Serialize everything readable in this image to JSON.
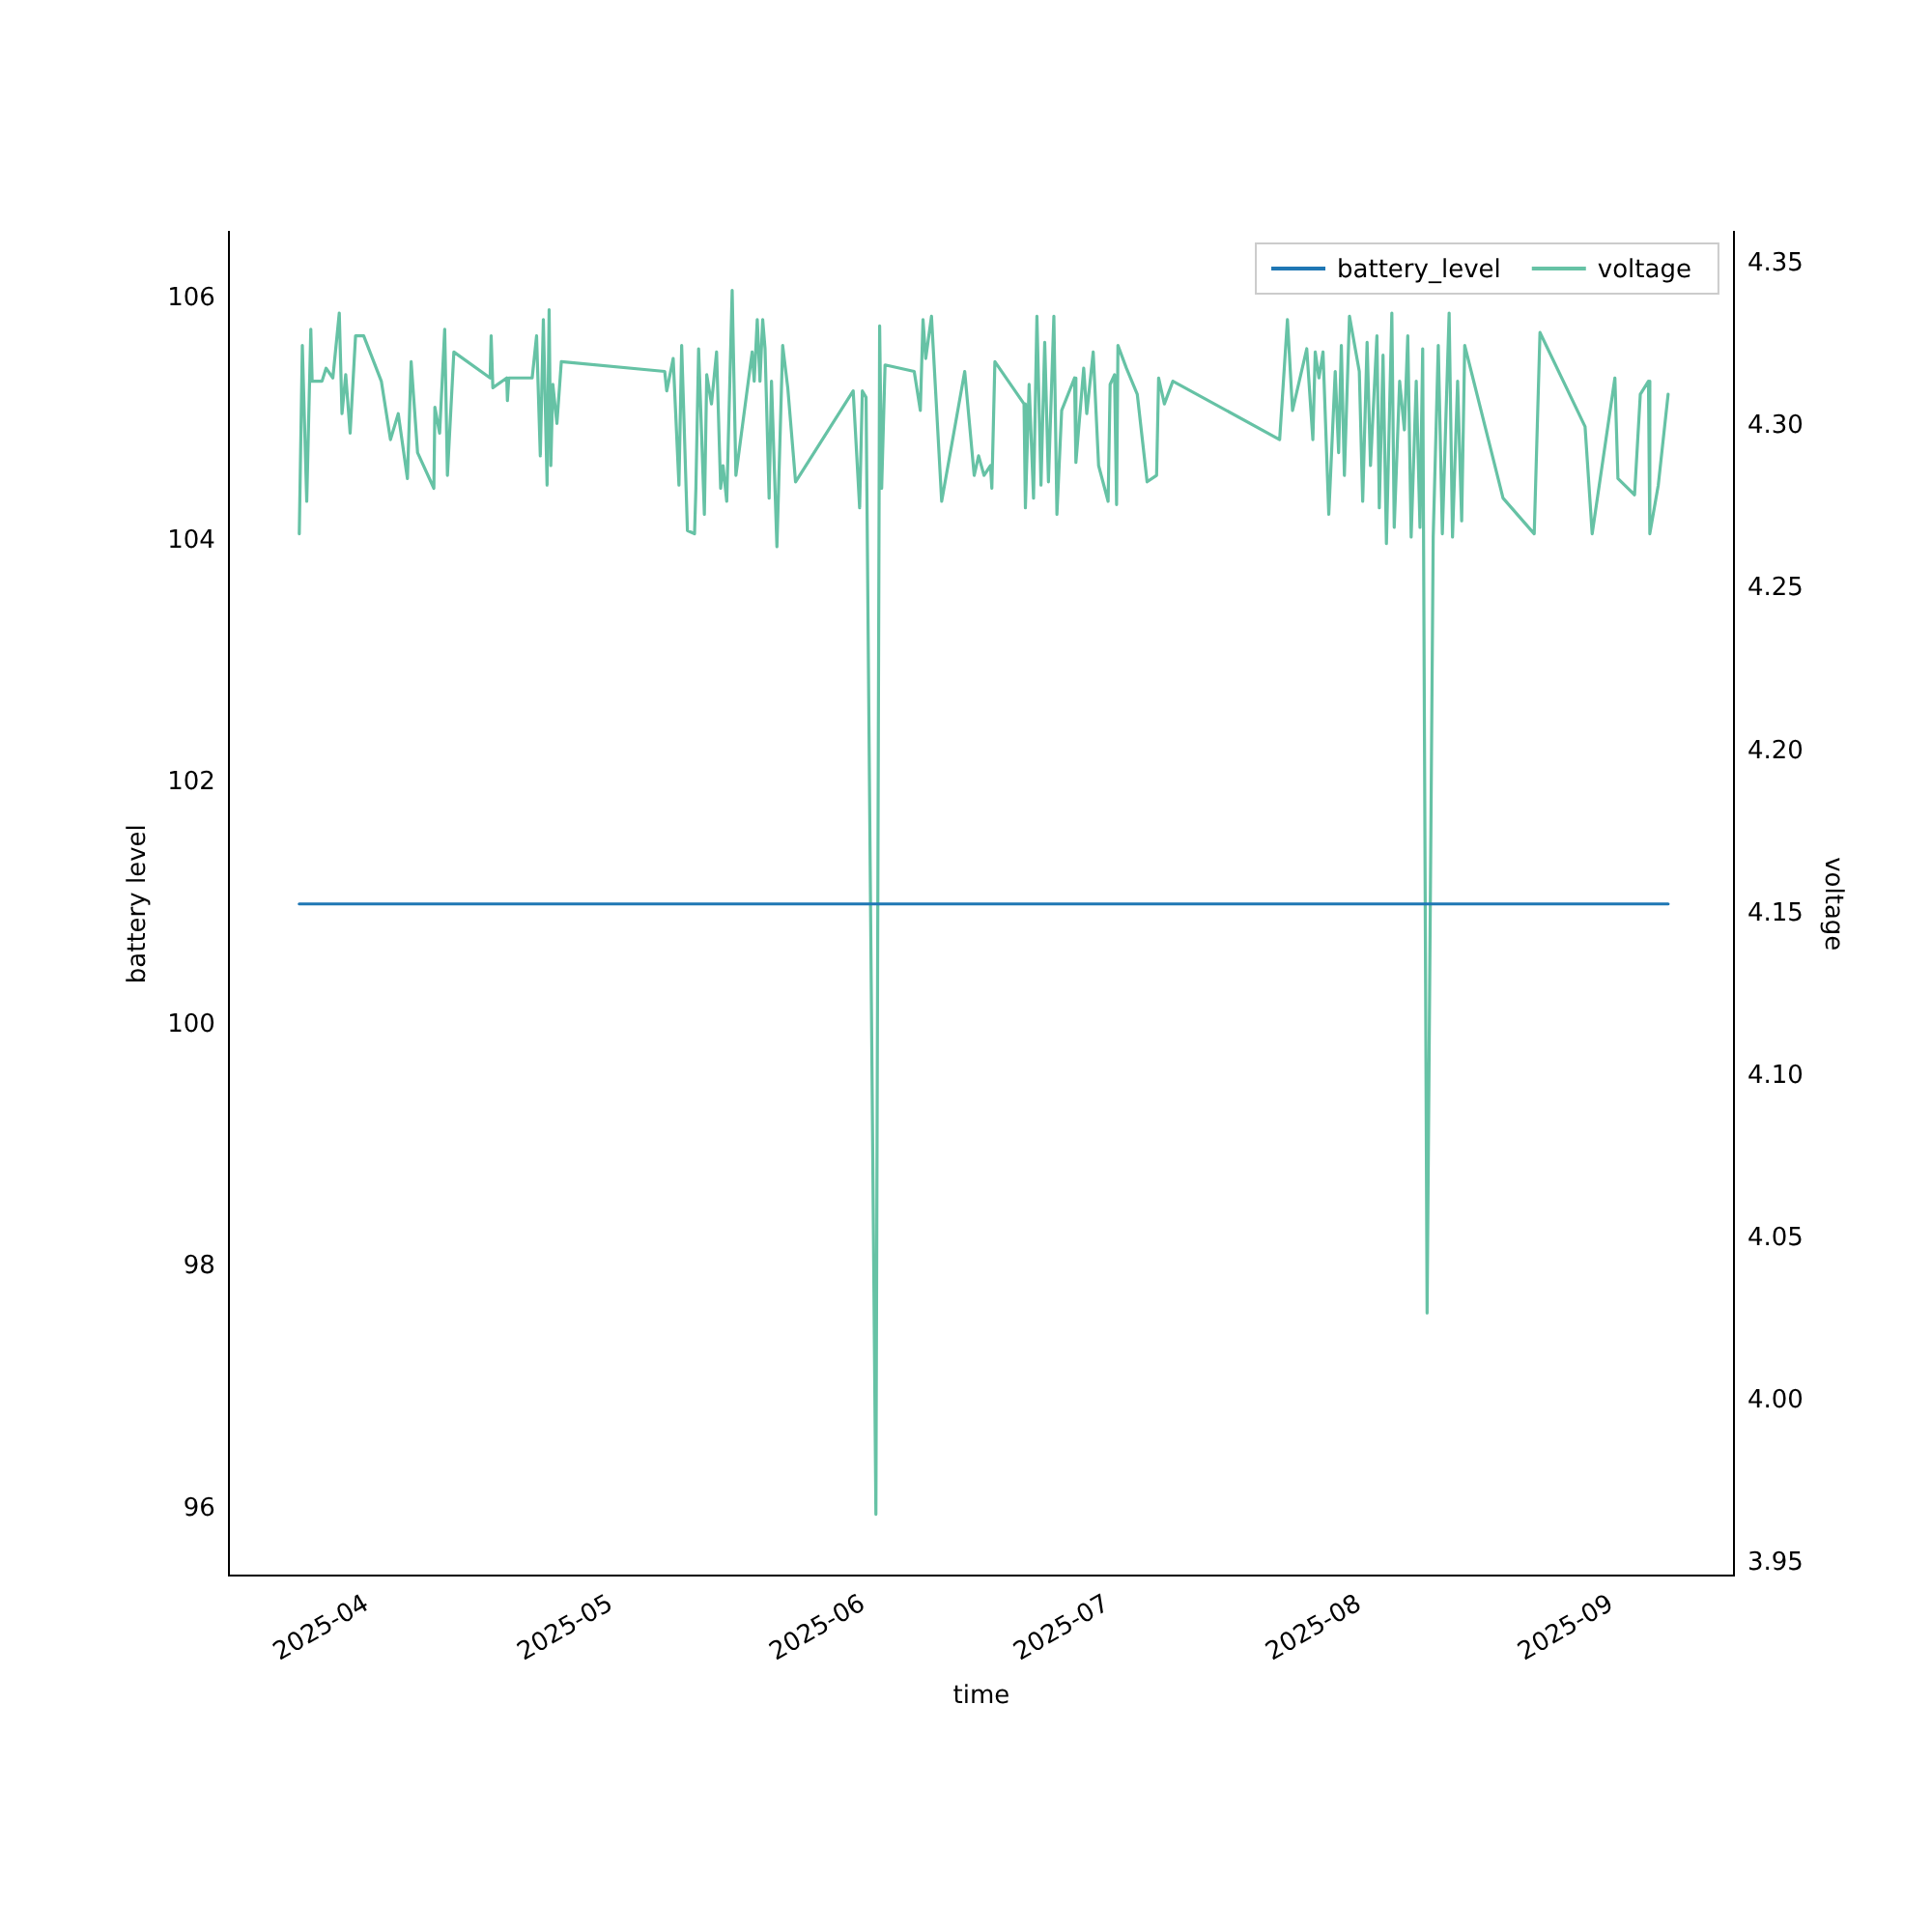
{
  "chart_data": {
    "type": "line",
    "xlabel": "time",
    "ylabel": "battery level",
    "y2label": "voltage",
    "xlim": [
      "2025-03-15",
      "2025-09-16"
    ],
    "xticks": [
      {
        "value": "2025-04-01",
        "label": "2025-04"
      },
      {
        "value": "2025-05-01",
        "label": "2025-05"
      },
      {
        "value": "2025-06-01",
        "label": "2025-06"
      },
      {
        "value": "2025-07-01",
        "label": "2025-07"
      },
      {
        "value": "2025-08-01",
        "label": "2025-08"
      },
      {
        "value": "2025-09-01",
        "label": "2025-09"
      }
    ],
    "ylim": [
      95.445,
      106.555
    ],
    "yticks": [
      96,
      98,
      100,
      102,
      104,
      106
    ],
    "y2lim": [
      3.946,
      4.36
    ],
    "y2ticks": [
      {
        "value": 3.95,
        "label": "3.95"
      },
      {
        "value": 4,
        "label": "4.00"
      },
      {
        "value": 4.05,
        "label": "4.05"
      },
      {
        "value": 4.1,
        "label": "4.10"
      },
      {
        "value": 4.15,
        "label": "4.15"
      },
      {
        "value": 4.2,
        "label": "4.20"
      },
      {
        "value": 4.25,
        "label": "4.25"
      },
      {
        "value": 4.3,
        "label": "4.30"
      },
      {
        "value": 4.35,
        "label": "4.35"
      }
    ],
    "legend": "top right",
    "grid": false,
    "marker": "none",
    "line_style": "solid",
    "series": [
      {
        "name": "battery_level",
        "color": "#1f77b4",
        "x": [
          "2025-03-23T16:00",
          "2025-09-07T22:00"
        ],
        "values": [
          101,
          101
        ]
      },
      {
        "name": "voltage",
        "color": "#66c2a5",
        "axis": "y2",
        "x": [
          "2025-03-23T16:00",
          "2025-03-24T01:00",
          "2025-03-24T14:00",
          "2025-03-25T02:00",
          "2025-03-25T06:00",
          "2025-03-26T11:00",
          "2025-03-26T23:00",
          "2025-03-27T19:00",
          "2025-03-28T14:00",
          "2025-03-28T22:00",
          "2025-03-29T09:00",
          "2025-03-29T22:00",
          "2025-03-30T14:00",
          "2025-03-31T14:00",
          "2025-04-02T18:00",
          "2025-04-03T21:00",
          "2025-04-04T20:00",
          "2025-04-05T23:00",
          "2025-04-06T10:00",
          "2025-04-07T05:00",
          "2025-04-09T05:00",
          "2025-04-09T08:00",
          "2025-04-09T22:00",
          "2025-04-10T13:00",
          "2025-04-10T21:00",
          "2025-04-11T16:00",
          "2025-04-16T03:00",
          "2025-04-16T06:00",
          "2025-04-16T11:00",
          "2025-04-18T04:00",
          "2025-04-18T06:00",
          "2025-04-18T10:00",
          "2025-04-21T07:00",
          "2025-04-21T20:00",
          "2025-04-22T07:00",
          "2025-04-22T16:00",
          "2025-04-23T03:00",
          "2025-04-23T09:00",
          "2025-04-23T14:00",
          "2025-04-23T20:00",
          "2025-04-24T08:00",
          "2025-04-24T21:00",
          "2025-05-07T14:00",
          "2025-05-07T20:00",
          "2025-05-08T15:00",
          "2025-05-09T08:00",
          "2025-05-09T16:00",
          "2025-05-10T09:00",
          "2025-05-11T06:00",
          "2025-05-11T10:00",
          "2025-05-11T18:00",
          "2025-05-12T11:00",
          "2025-05-12T18:00",
          "2025-05-13T08:00",
          "2025-05-13T23:00",
          "2025-05-14T11:00",
          "2025-05-14T18:00",
          "2025-05-15T05:00",
          "2025-05-15T21:00",
          "2025-05-16T08:00",
          "2025-05-18T08:00",
          "2025-05-18T14:00",
          "2025-05-18T23:00",
          "2025-05-19T07:00",
          "2025-05-19T15:00",
          "2025-05-19T22:00",
          "2025-05-20T10:00",
          "2025-05-20T17:00",
          "2025-05-21T09:00",
          "2025-05-22T02:00",
          "2025-05-22T17:00",
          "2025-05-23T16:00",
          "2025-05-30T18:00",
          "2025-05-31T13:00",
          "2025-05-31T21:00",
          "2025-06-01T08:00",
          "2025-06-02T13:00",
          "2025-06-03T00:00",
          "2025-06-03T06:00",
          "2025-06-03T16:00",
          "2025-06-07T06:00",
          "2025-06-08T00:00",
          "2025-06-08T08:00",
          "2025-06-08T16:00",
          "2025-06-09T09:00",
          "2025-06-10T15:00",
          "2025-06-13T11:00",
          "2025-06-14T15:00",
          "2025-06-15T04:00",
          "2025-06-15T20:00",
          "2025-06-16T15:00",
          "2025-06-16T19:00",
          "2025-06-17T04:00",
          "2025-06-20T18:00",
          "2025-06-20T22:00",
          "2025-06-21T09:00",
          "2025-06-21T22:00",
          "2025-06-22T08:00",
          "2025-06-22T20:00",
          "2025-06-23T07:00",
          "2025-06-23T18:00",
          "2025-06-24T10:00",
          "2025-06-24T19:00",
          "2025-06-25T09:00",
          "2025-06-26T23:00",
          "2025-06-27T03:00",
          "2025-06-28T02:00",
          "2025-06-28T11:00",
          "2025-06-29T06:00",
          "2025-06-29T22:00",
          "2025-07-01T02:00",
          "2025-07-01T08:00",
          "2025-07-01T21:00",
          "2025-07-02T03:00",
          "2025-07-02T07:00",
          "2025-07-03T08:00",
          "2025-07-04T16:00",
          "2025-07-05T21:00",
          "2025-07-07T01:00",
          "2025-07-07T07:00",
          "2025-07-08T00:00",
          "2025-07-09T01:00",
          "2025-07-22T04:00",
          "2025-07-23T03:00",
          "2025-07-23T18:00",
          "2025-07-25T12:00",
          "2025-07-26T06:00",
          "2025-07-26T13:00",
          "2025-07-27T00:00",
          "2025-07-27T12:00",
          "2025-07-28T05:00",
          "2025-07-29T00:00",
          "2025-07-29T10:00",
          "2025-07-29T18:00",
          "2025-07-30T03:00",
          "2025-07-30T18:00",
          "2025-07-31T23:00",
          "2025-08-01T09:00",
          "2025-08-01T22:00",
          "2025-08-02T08:00",
          "2025-08-03T03:00",
          "2025-08-03T10:00",
          "2025-08-03T21:00",
          "2025-08-04T07:00",
          "2025-08-04T23:00",
          "2025-08-05T06:00",
          "2025-08-05T22:00",
          "2025-08-06T12:00",
          "2025-08-06T22:00",
          "2025-08-07T08:00",
          "2025-08-07T23:00",
          "2025-08-08T10:00",
          "2025-08-08T18:00",
          "2025-08-09T07:00",
          "2025-08-10T01:00",
          "2025-08-10T16:00",
          "2025-08-11T04:00",
          "2025-08-12T00:00",
          "2025-08-12T10:00",
          "2025-08-13T01:00",
          "2025-08-13T13:00",
          "2025-08-13T22:00",
          "2025-08-18T15:00",
          "2025-08-22T11:00",
          "2025-08-23T04:00",
          "2025-08-28T17:00",
          "2025-08-29T14:00",
          "2025-09-01T09:00",
          "2025-09-01T18:00",
          "2025-09-03T19:00",
          "2025-09-04T12:00",
          "2025-09-05T12:00",
          "2025-09-05T16:00",
          "2025-09-06T17:00",
          "2025-09-07T22:00"
        ],
        "values": [
          4.267,
          4.325,
          4.277,
          4.33,
          4.314,
          4.314,
          4.318,
          4.315,
          4.335,
          4.304,
          4.316,
          4.298,
          4.328,
          4.328,
          4.314,
          4.296,
          4.304,
          4.284,
          4.32,
          4.292,
          4.281,
          4.306,
          4.298,
          4.33,
          4.285,
          4.323,
          4.315,
          4.328,
          4.312,
          4.315,
          4.308,
          4.315,
          4.315,
          4.328,
          4.291,
          4.333,
          4.282,
          4.336,
          4.288,
          4.313,
          4.301,
          4.32,
          4.317,
          4.311,
          4.321,
          4.282,
          4.325,
          4.268,
          4.267,
          4.281,
          4.324,
          4.273,
          4.316,
          4.307,
          4.323,
          4.281,
          4.288,
          4.277,
          4.342,
          4.285,
          4.323,
          4.314,
          4.333,
          4.314,
          4.333,
          4.324,
          4.278,
          4.314,
          4.263,
          4.325,
          4.312,
          4.283,
          4.311,
          4.275,
          4.311,
          4.309,
          3.965,
          4.331,
          4.281,
          4.319,
          4.317,
          4.305,
          4.333,
          4.321,
          4.334,
          4.277,
          4.317,
          4.285,
          4.291,
          4.285,
          4.288,
          4.281,
          4.32,
          4.307,
          4.275,
          4.313,
          4.278,
          4.334,
          4.282,
          4.326,
          4.283,
          4.334,
          4.273,
          4.305,
          4.315,
          4.289,
          4.318,
          4.304,
          4.323,
          4.288,
          4.277,
          4.313,
          4.316,
          4.276,
          4.325,
          4.318,
          4.31,
          4.283,
          4.285,
          4.315,
          4.307,
          4.314,
          4.296,
          4.333,
          4.305,
          4.324,
          4.296,
          4.323,
          4.315,
          4.323,
          4.273,
          4.317,
          4.292,
          4.325,
          4.285,
          4.334,
          4.317,
          4.277,
          4.326,
          4.288,
          4.328,
          4.275,
          4.322,
          4.264,
          4.335,
          4.269,
          4.314,
          4.299,
          4.328,
          4.266,
          4.314,
          4.269,
          4.324,
          4.027,
          4.266,
          4.325,
          4.267,
          4.335,
          4.266,
          4.314,
          4.271,
          4.325,
          4.278,
          4.267,
          4.329,
          4.3,
          4.267,
          4.315,
          4.284,
          4.279,
          4.31,
          4.314,
          4.267,
          4.282,
          4.31
        ]
      }
    ]
  }
}
